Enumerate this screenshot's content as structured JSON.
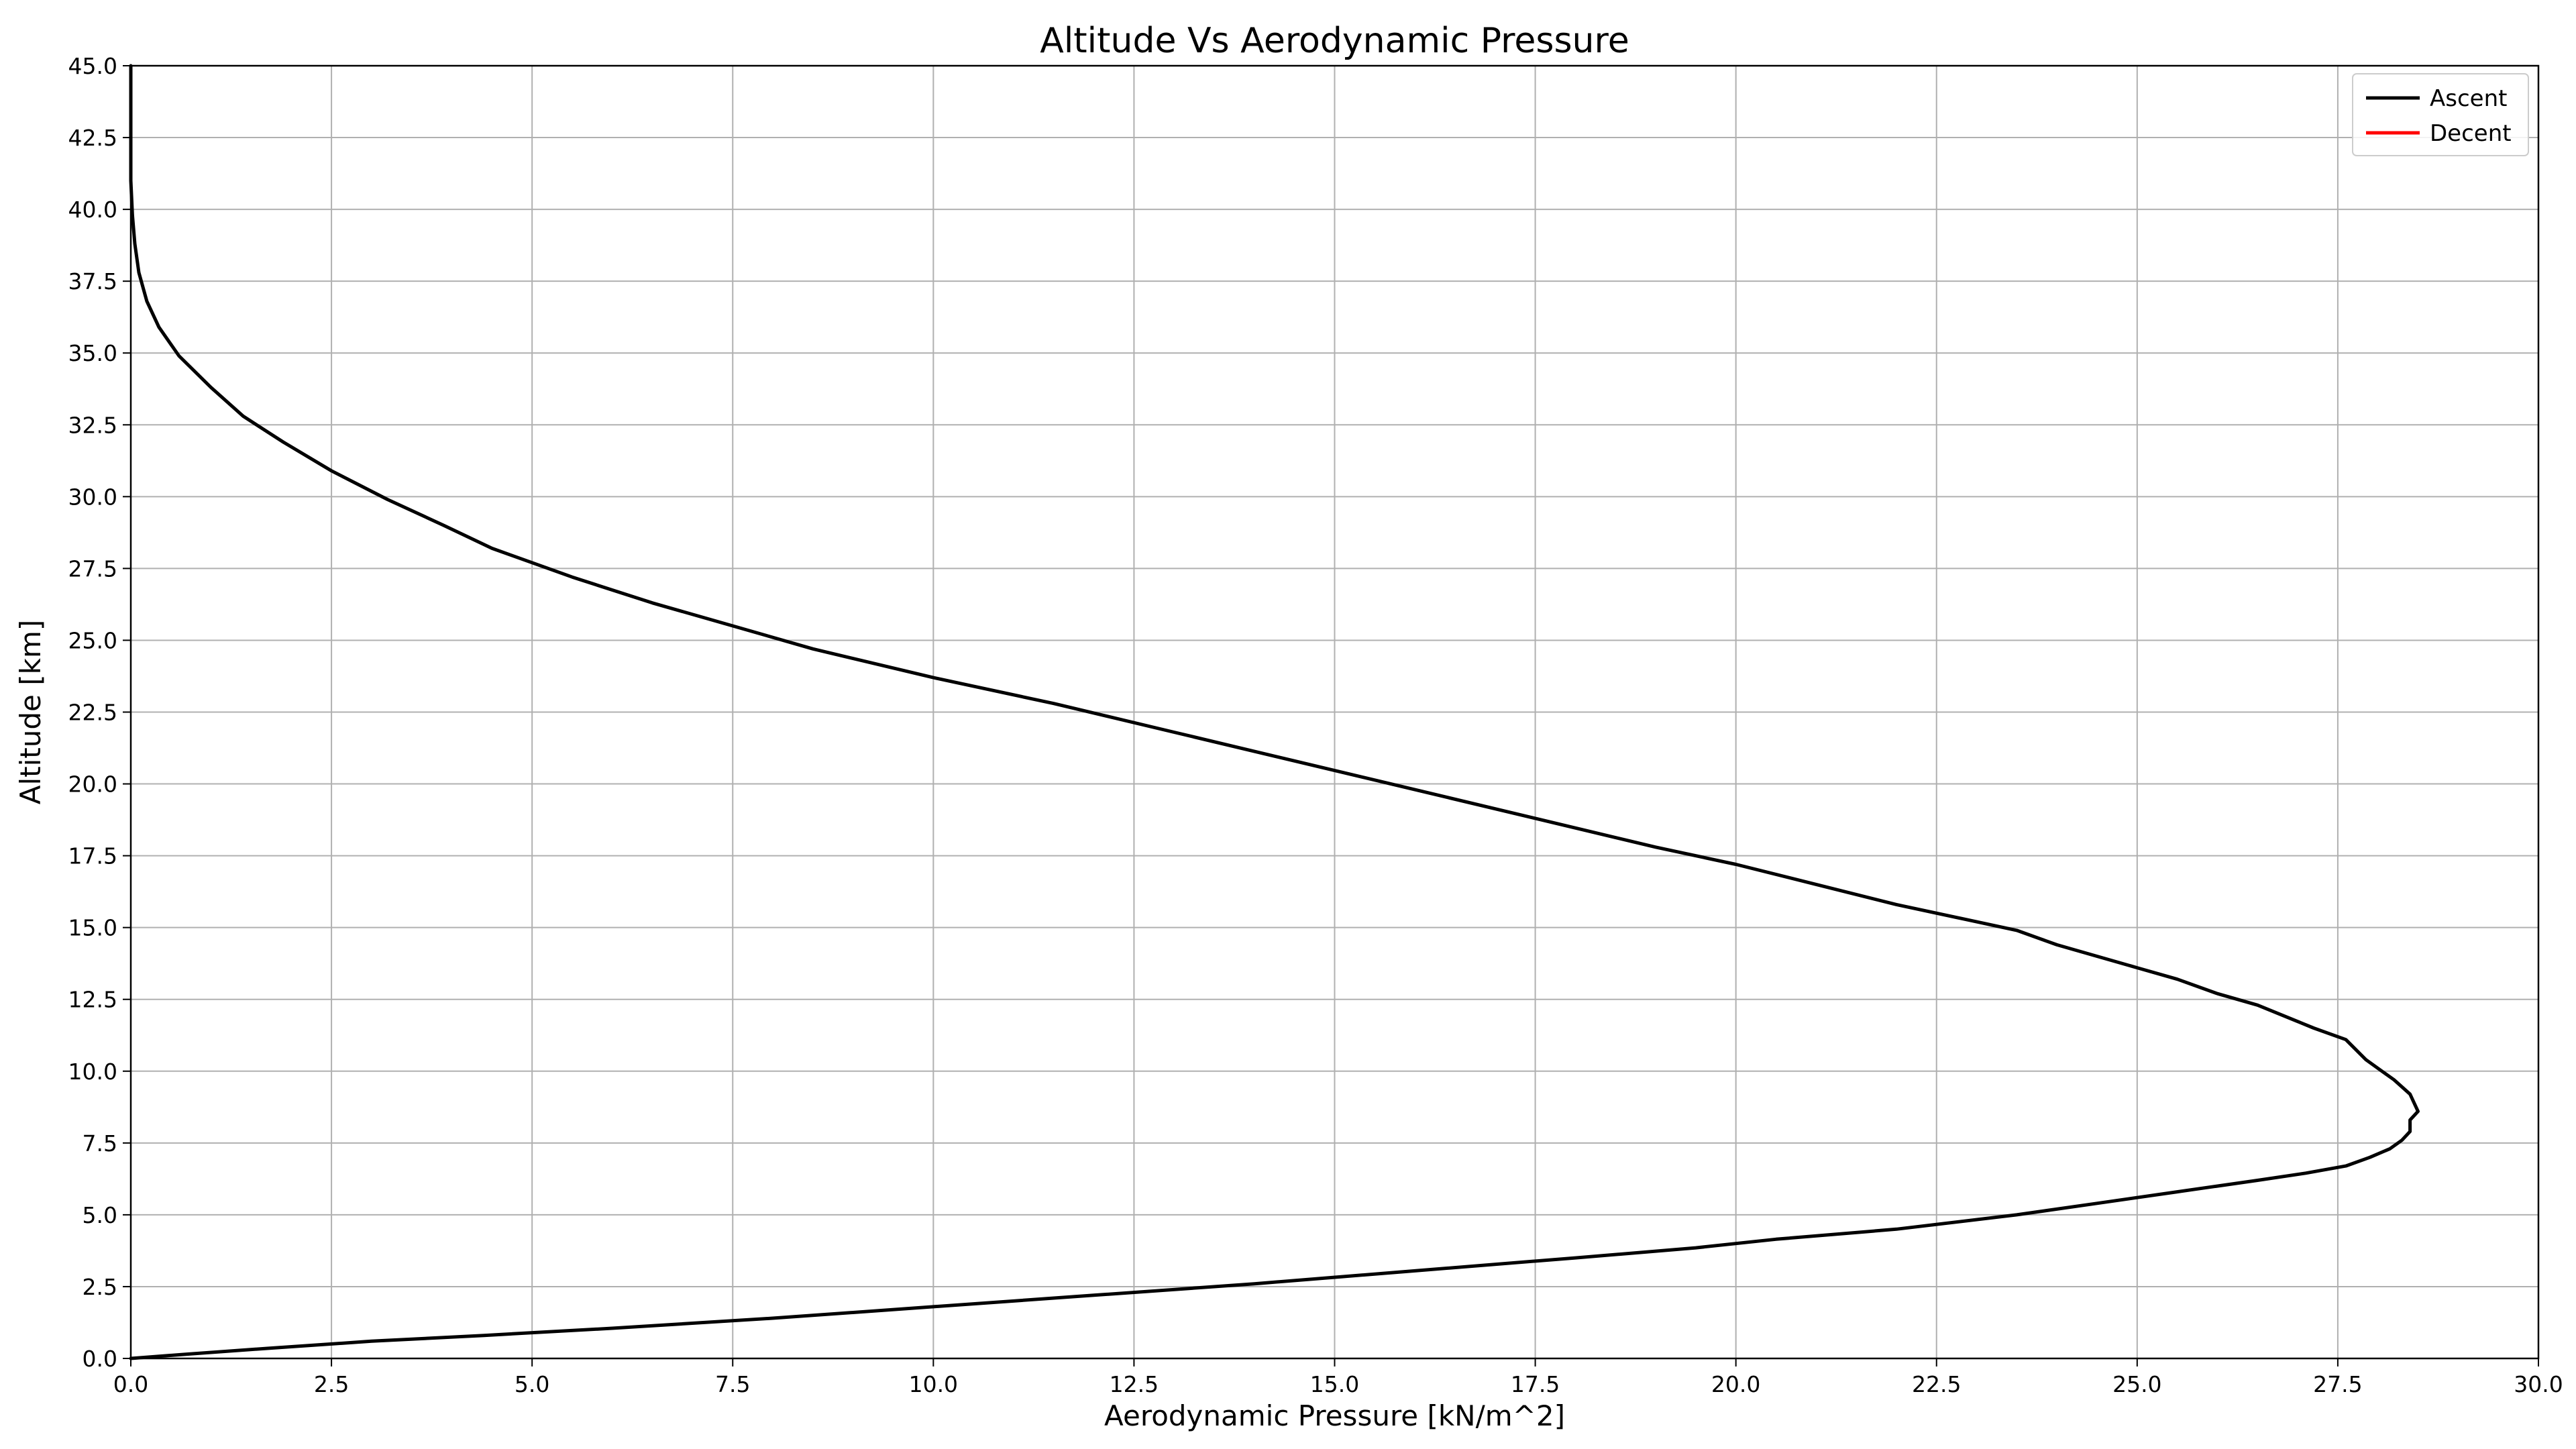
{
  "chart_data": {
    "type": "line",
    "title": "Altitude Vs Aerodynamic Pressure",
    "xlabel": "Aerodynamic Pressure [kN/m^2]",
    "ylabel": "Altitude [km]",
    "xlim": [
      0.0,
      30.0
    ],
    "ylim": [
      0.0,
      45.0
    ],
    "xticks": [
      "0.0",
      "2.5",
      "5.0",
      "7.5",
      "10.0",
      "12.5",
      "15.0",
      "17.5",
      "20.0",
      "22.5",
      "25.0",
      "27.5",
      "30.0"
    ],
    "yticks": [
      "0.0",
      "2.5",
      "5.0",
      "7.5",
      "10.0",
      "12.5",
      "15.0",
      "17.5",
      "20.0",
      "22.5",
      "25.0",
      "27.5",
      "30.0",
      "32.5",
      "35.0",
      "37.5",
      "40.0",
      "42.5",
      "45.0"
    ],
    "grid": true,
    "legend_position": "top-right",
    "series": [
      {
        "name": "Ascent",
        "color": "#000000",
        "points": [
          [
            0.0,
            0.0
          ],
          [
            0.7,
            0.15
          ],
          [
            1.7,
            0.35
          ],
          [
            3.0,
            0.6
          ],
          [
            4.4,
            0.8
          ],
          [
            6.0,
            1.05
          ],
          [
            8.0,
            1.4
          ],
          [
            10.0,
            1.8
          ],
          [
            12.0,
            2.2
          ],
          [
            14.0,
            2.6
          ],
          [
            16.0,
            3.05
          ],
          [
            18.0,
            3.5
          ],
          [
            19.5,
            3.85
          ],
          [
            20.5,
            4.15
          ],
          [
            22.0,
            4.5
          ],
          [
            23.5,
            5.0
          ],
          [
            24.5,
            5.4
          ],
          [
            25.5,
            5.8
          ],
          [
            26.5,
            6.2
          ],
          [
            27.1,
            6.45
          ],
          [
            27.6,
            6.7
          ],
          [
            27.9,
            7.0
          ],
          [
            28.15,
            7.3
          ],
          [
            28.3,
            7.6
          ],
          [
            28.4,
            7.9
          ],
          [
            28.4,
            8.3
          ],
          [
            28.5,
            8.6
          ],
          [
            28.4,
            9.2
          ],
          [
            28.2,
            9.7
          ],
          [
            28.0,
            10.1
          ],
          [
            27.85,
            10.4
          ],
          [
            27.6,
            11.1
          ],
          [
            27.2,
            11.5
          ],
          [
            26.5,
            12.3
          ],
          [
            26.0,
            12.7
          ],
          [
            25.5,
            13.2
          ],
          [
            25.0,
            13.6
          ],
          [
            24.5,
            14.0
          ],
          [
            24.0,
            14.4
          ],
          [
            23.5,
            14.9
          ],
          [
            23.0,
            15.2
          ],
          [
            22.0,
            15.8
          ],
          [
            21.0,
            16.5
          ],
          [
            20.0,
            17.2
          ],
          [
            19.0,
            17.8
          ],
          [
            17.5,
            18.8
          ],
          [
            16.0,
            19.8
          ],
          [
            14.5,
            20.8
          ],
          [
            13.0,
            21.8
          ],
          [
            11.5,
            22.8
          ],
          [
            10.0,
            23.7
          ],
          [
            8.5,
            24.7
          ],
          [
            7.5,
            25.5
          ],
          [
            6.5,
            26.3
          ],
          [
            5.5,
            27.2
          ],
          [
            4.5,
            28.2
          ],
          [
            3.9,
            29.0
          ],
          [
            3.2,
            29.9
          ],
          [
            2.5,
            30.9
          ],
          [
            1.9,
            31.9
          ],
          [
            1.4,
            32.8
          ],
          [
            1.0,
            33.8
          ],
          [
            0.6,
            34.9
          ],
          [
            0.35,
            35.9
          ],
          [
            0.2,
            36.8
          ],
          [
            0.1,
            37.8
          ],
          [
            0.05,
            38.8
          ],
          [
            0.02,
            39.8
          ],
          [
            0.0,
            41.0
          ],
          [
            0.0,
            42.5
          ],
          [
            0.0,
            45.0
          ]
        ]
      },
      {
        "name": "Decent",
        "color": "#ff0000",
        "points": []
      }
    ]
  }
}
